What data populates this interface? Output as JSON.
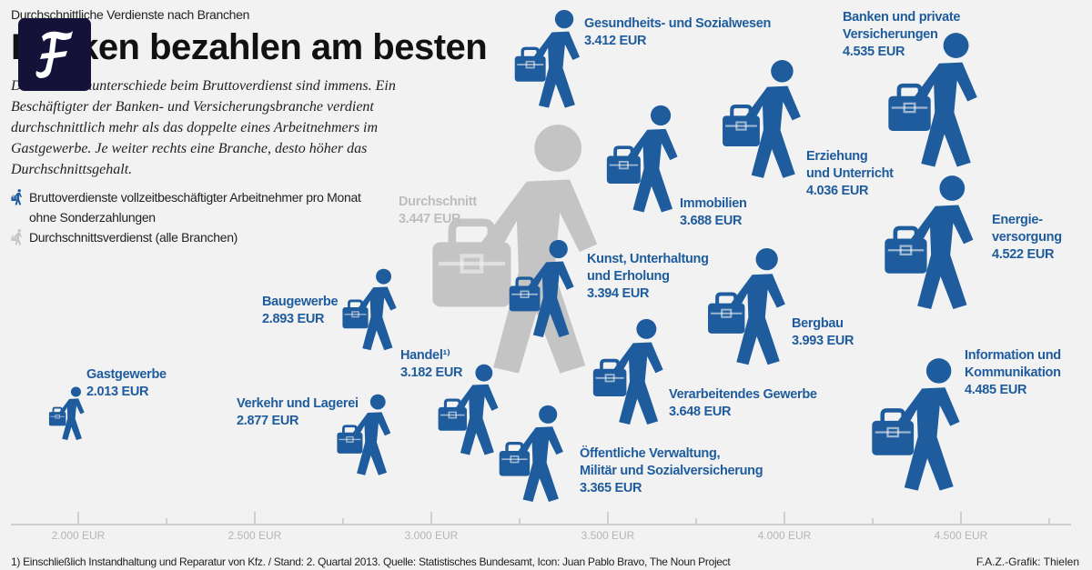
{
  "kicker": "Durchschnittliche Verdienste nach Branchen",
  "title": "Banken bezahlen am besten",
  "logo": "F",
  "intro": "Die Branchenunterschiede beim Bruttoverdienst sind immens. Ein Beschäftigter der Banken- und Versicherungsbranche verdient durchschnittlich mehr als das doppelte eines Arbeitnehmers im Gastgewerbe. Je weiter rechts eine Branche, desto höher das Durchschnittsgehalt.",
  "legend": [
    {
      "label": "Bruttoverdienste vollzeitbeschäftigter Arbeitnehmer pro Monat ohne Sonderzahlungen",
      "color": "#1f5c9d",
      "icon": "walking-person-briefcase-icon"
    },
    {
      "label": "Durchschnittsverdienst (alle Branchen)",
      "color": "#c4c4c4",
      "icon": "walking-person-briefcase-icon"
    }
  ],
  "colors": {
    "branch": "#1f5c9d",
    "average": "#c4c4c4",
    "background": "#f2f2f2"
  },
  "chart_data": {
    "type": "scatter",
    "title": "Banken bezahlen am besten",
    "subtitle": "Durchschnittliche Verdienste nach Branchen",
    "xlabel": "",
    "unit": "EUR",
    "xlim": [
      1950,
      4800
    ],
    "xticks": [
      "2.000 EUR",
      "2.500 EUR",
      "3.000 EUR",
      "3.500 EUR",
      "4.000 EUR",
      "4.500 EUR"
    ],
    "xtick_values": [
      2000,
      2500,
      3000,
      3500,
      4000,
      4500
    ],
    "marker": "walking-person-briefcase-icon",
    "average": {
      "name": "Durchschnitt",
      "value": 3447,
      "value_label": "3.447 EUR"
    },
    "points": [
      {
        "name": "Gastgewerbe",
        "value": 2013,
        "value_label": "2.013 EUR"
      },
      {
        "name": "Verkehr und Lagerei",
        "value": 2877,
        "value_label": "2.877 EUR"
      },
      {
        "name": "Baugewerbe",
        "value": 2893,
        "value_label": "2.893 EUR"
      },
      {
        "name": "Handel¹⁾",
        "value": 3182,
        "value_label": "3.182 EUR"
      },
      {
        "name": "Öffentliche Verwaltung,\nMilitär und Sozialversicherung",
        "value": 3365,
        "value_label": "3.365 EUR"
      },
      {
        "name": "Kunst, Unterhaltung\nund Erholung",
        "value": 3394,
        "value_label": "3.394 EUR"
      },
      {
        "name": "Gesundheits- und Sozialwesen",
        "value": 3412,
        "value_label": "3.412 EUR"
      },
      {
        "name": "Verarbeitendes Gewerbe",
        "value": 3648,
        "value_label": "3.648 EUR"
      },
      {
        "name": "Immobilien",
        "value": 3688,
        "value_label": "3.688 EUR"
      },
      {
        "name": "Bergbau",
        "value": 3993,
        "value_label": "3.993 EUR"
      },
      {
        "name": "Erziehung\nund Unterricht",
        "value": 4036,
        "value_label": "4.036 EUR"
      },
      {
        "name": "Information und\nKommunikation",
        "value": 4485,
        "value_label": "4.485 EUR"
      },
      {
        "name": "Energie-\nversorgung",
        "value": 4522,
        "value_label": "4.522 EUR"
      },
      {
        "name": "Banken und private\nVersicherungen",
        "value": 4535,
        "value_label": "4.535 EUR"
      }
    ]
  },
  "footer": "1) Einschließlich Instandhaltung und Reparatur von Kfz. / Stand: 2. Quartal 2013. Quelle: Statistisches Bundesamt, Icon: Juan Pablo Bravo, The Noun Project",
  "credit": "F.A.Z.-Grafik: Thielen"
}
